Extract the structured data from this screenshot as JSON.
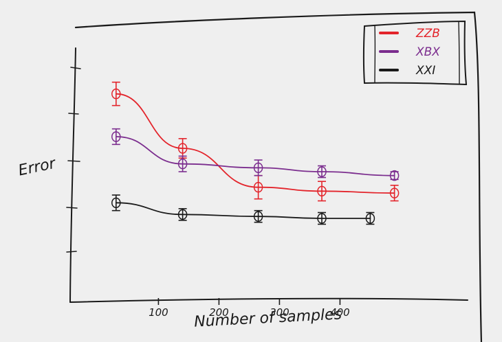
{
  "chart_data": {
    "type": "line",
    "title": "",
    "xlabel": "Number of samples",
    "ylabel": "Error",
    "x_ticks": [
      100,
      200,
      300,
      400
    ],
    "xlim": [
      20,
      520
    ],
    "ylim": [
      0,
      6
    ],
    "grid": false,
    "legend": {
      "placement": "top-right",
      "entries": [
        {
          "label": "ZZB",
          "color": "#e3242b"
        },
        {
          "label": "XBX",
          "color": "#7b2d8e"
        },
        {
          "label": "XXI",
          "color": "#1a1a1a"
        }
      ]
    },
    "series": [
      {
        "name": "ZZB",
        "color": "#e3242b",
        "x": [
          30,
          140,
          265,
          370,
          490
        ],
        "y": [
          5.0,
          3.6,
          2.6,
          2.5,
          2.45
        ],
        "errors": [
          0.3,
          0.25,
          0.3,
          0.25,
          0.2
        ]
      },
      {
        "name": "XBX",
        "color": "#7b2d8e",
        "x": [
          30,
          140,
          265,
          370,
          490
        ],
        "y": [
          3.9,
          3.2,
          3.1,
          3.0,
          2.9
        ],
        "errors": [
          0.2,
          0.2,
          0.2,
          0.15,
          0.1
        ]
      },
      {
        "name": "XXI",
        "color": "#1a1a1a",
        "x": [
          30,
          140,
          265,
          370,
          450
        ],
        "y": [
          2.2,
          1.9,
          1.85,
          1.8,
          1.8
        ],
        "errors": [
          0.2,
          0.15,
          0.15,
          0.15,
          0.15
        ]
      }
    ]
  }
}
